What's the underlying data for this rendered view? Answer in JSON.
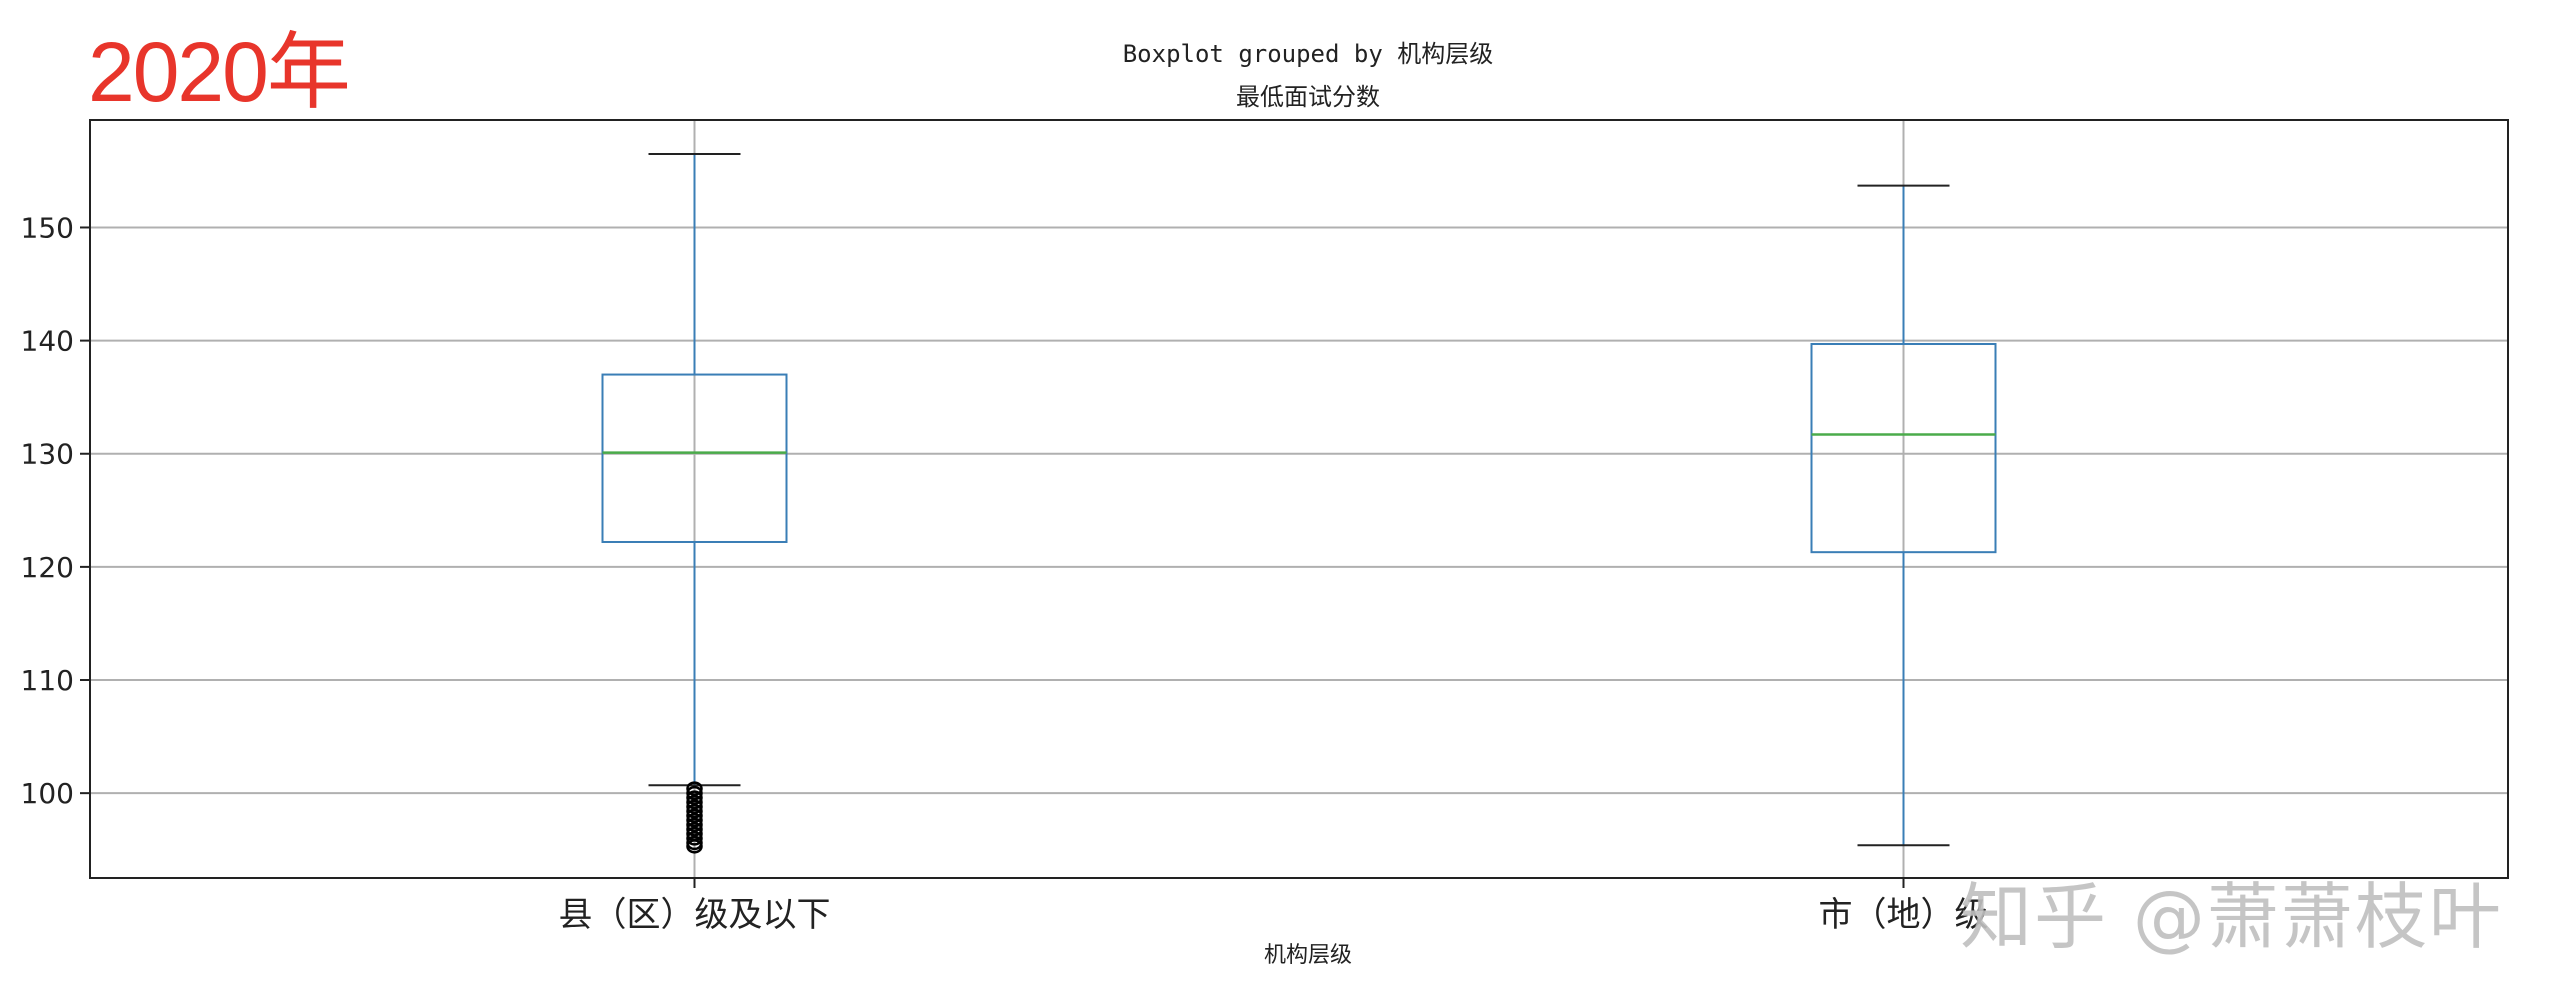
{
  "header": {
    "year_label": "2020年",
    "watermark": "知乎 @萧萧枝叶"
  },
  "chart_data": {
    "type": "box",
    "suptitle": "Boxplot grouped by 机构层级",
    "title": "最低面试分数",
    "xlabel": "机构层级",
    "ylabel": "",
    "ylim": [
      92.5,
      159.5
    ],
    "yticks": [
      100,
      110,
      120,
      130,
      140,
      150
    ],
    "grid": true,
    "colors": {
      "box": "#3a7eb6",
      "median": "#4aab4a",
      "grid": "#b0b0b0",
      "flier": "#000000"
    },
    "categories": [
      "县（区）级及以下",
      "市（地）级"
    ],
    "boxes": [
      {
        "name": "县（区）级及以下",
        "whisker_low": 100.7,
        "q1": 122.2,
        "median": 130.1,
        "q3": 137.0,
        "whisker_high": 156.5,
        "fliers": [
          100.4,
          100.0,
          99.6,
          99.2,
          98.8,
          98.4,
          98.0,
          97.6,
          97.2,
          96.8,
          96.4,
          96.0,
          95.6,
          95.3
        ]
      },
      {
        "name": "市（地）级",
        "whisker_low": 95.4,
        "q1": 121.3,
        "median": 131.7,
        "q3": 139.7,
        "whisker_high": 153.7,
        "fliers": []
      }
    ]
  }
}
